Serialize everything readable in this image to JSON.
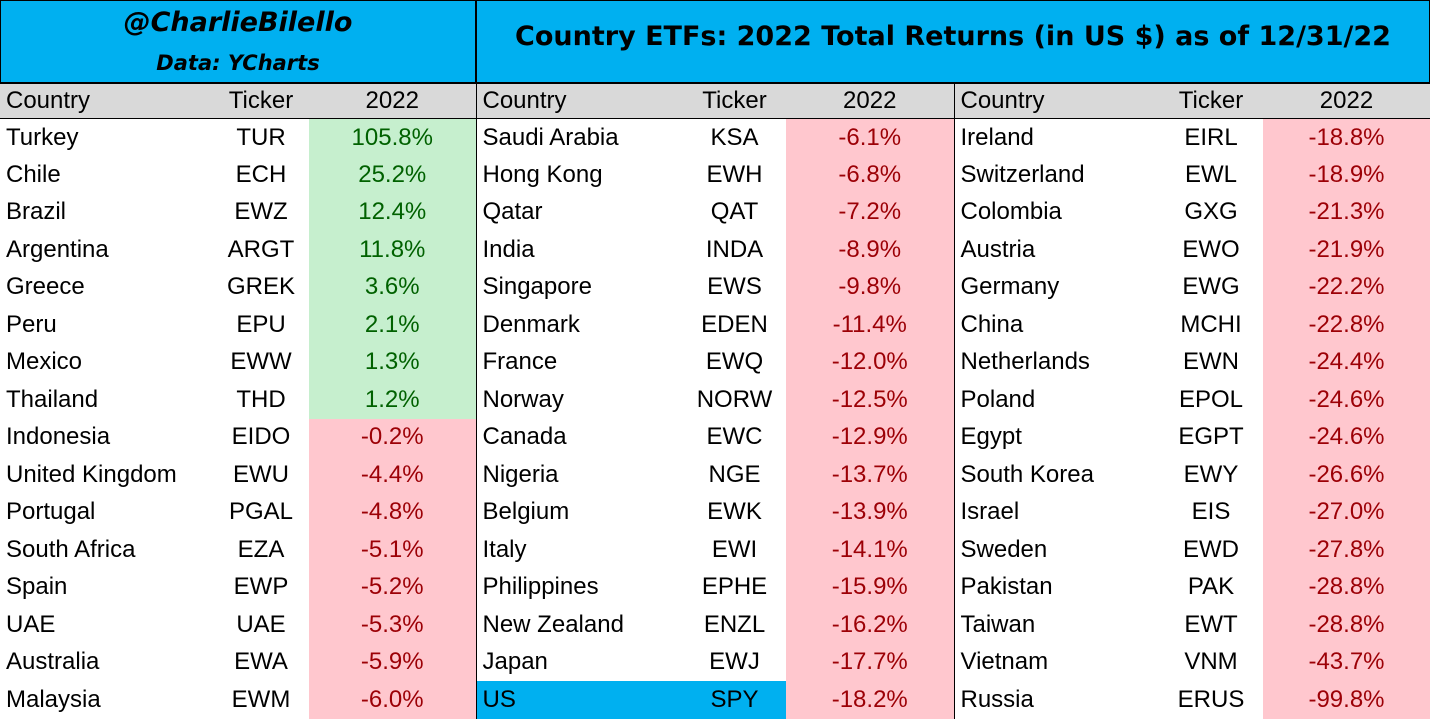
{
  "header": {
    "handle": "@CharlieBilello",
    "source": "Data: YCharts",
    "title": "Country ETFs: 2022 Total Returns (in US $) as of 12/31/22",
    "bg_color": "#00B0F0"
  },
  "columns": {
    "country": "Country",
    "ticker": "Ticker",
    "year": "2022"
  },
  "colors": {
    "positive_bg": "#C6EFCE",
    "positive_text": "#006100",
    "negative_bg": "#FFC7CE",
    "negative_text": "#9C0006",
    "header_bg": "#D9D9D9",
    "highlight_bg": "#00B0F0"
  },
  "chart_data": {
    "type": "table",
    "title": "Country ETFs: 2022 Total Returns (in US $) as of 12/31/22",
    "columns": [
      "Country",
      "Ticker",
      "2022"
    ],
    "groups": [
      [
        {
          "country": "Turkey",
          "ticker": "TUR",
          "ret": "105.8%",
          "value": 105.8
        },
        {
          "country": "Chile",
          "ticker": "ECH",
          "ret": "25.2%",
          "value": 25.2
        },
        {
          "country": "Brazil",
          "ticker": "EWZ",
          "ret": "12.4%",
          "value": 12.4
        },
        {
          "country": "Argentina",
          "ticker": "ARGT",
          "ret": "11.8%",
          "value": 11.8
        },
        {
          "country": "Greece",
          "ticker": "GREK",
          "ret": "3.6%",
          "value": 3.6
        },
        {
          "country": "Peru",
          "ticker": "EPU",
          "ret": "2.1%",
          "value": 2.1
        },
        {
          "country": "Mexico",
          "ticker": "EWW",
          "ret": "1.3%",
          "value": 1.3
        },
        {
          "country": "Thailand",
          "ticker": "THD",
          "ret": "1.2%",
          "value": 1.2
        },
        {
          "country": "Indonesia",
          "ticker": "EIDO",
          "ret": "-0.2%",
          "value": -0.2
        },
        {
          "country": "United Kingdom",
          "ticker": "EWU",
          "ret": "-4.4%",
          "value": -4.4
        },
        {
          "country": "Portugal",
          "ticker": "PGAL",
          "ret": "-4.8%",
          "value": -4.8
        },
        {
          "country": "South Africa",
          "ticker": "EZA",
          "ret": "-5.1%",
          "value": -5.1
        },
        {
          "country": "Spain",
          "ticker": "EWP",
          "ret": "-5.2%",
          "value": -5.2
        },
        {
          "country": "UAE",
          "ticker": "UAE",
          "ret": "-5.3%",
          "value": -5.3
        },
        {
          "country": "Australia",
          "ticker": "EWA",
          "ret": "-5.9%",
          "value": -5.9
        },
        {
          "country": "Malaysia",
          "ticker": "EWM",
          "ret": "-6.0%",
          "value": -6.0
        }
      ],
      [
        {
          "country": "Saudi Arabia",
          "ticker": "KSA",
          "ret": "-6.1%",
          "value": -6.1
        },
        {
          "country": "Hong Kong",
          "ticker": "EWH",
          "ret": "-6.8%",
          "value": -6.8
        },
        {
          "country": "Qatar",
          "ticker": "QAT",
          "ret": "-7.2%",
          "value": -7.2
        },
        {
          "country": "India",
          "ticker": "INDA",
          "ret": "-8.9%",
          "value": -8.9
        },
        {
          "country": "Singapore",
          "ticker": "EWS",
          "ret": "-9.8%",
          "value": -9.8
        },
        {
          "country": "Denmark",
          "ticker": "EDEN",
          "ret": "-11.4%",
          "value": -11.4
        },
        {
          "country": "France",
          "ticker": "EWQ",
          "ret": "-12.0%",
          "value": -12.0
        },
        {
          "country": "Norway",
          "ticker": "NORW",
          "ret": "-12.5%",
          "value": -12.5
        },
        {
          "country": "Canada",
          "ticker": "EWC",
          "ret": "-12.9%",
          "value": -12.9
        },
        {
          "country": "Nigeria",
          "ticker": "NGE",
          "ret": "-13.7%",
          "value": -13.7
        },
        {
          "country": "Belgium",
          "ticker": "EWK",
          "ret": "-13.9%",
          "value": -13.9
        },
        {
          "country": "Italy",
          "ticker": "EWI",
          "ret": "-14.1%",
          "value": -14.1
        },
        {
          "country": "Philippines",
          "ticker": "EPHE",
          "ret": "-15.9%",
          "value": -15.9
        },
        {
          "country": "New Zealand",
          "ticker": "ENZL",
          "ret": "-16.2%",
          "value": -16.2
        },
        {
          "country": "Japan",
          "ticker": "EWJ",
          "ret": "-17.7%",
          "value": -17.7
        },
        {
          "country": "US",
          "ticker": "SPY",
          "ret": "-18.2%",
          "value": -18.2,
          "highlight": true
        }
      ],
      [
        {
          "country": "Ireland",
          "ticker": "EIRL",
          "ret": "-18.8%",
          "value": -18.8
        },
        {
          "country": "Switzerland",
          "ticker": "EWL",
          "ret": "-18.9%",
          "value": -18.9
        },
        {
          "country": "Colombia",
          "ticker": "GXG",
          "ret": "-21.3%",
          "value": -21.3
        },
        {
          "country": "Austria",
          "ticker": "EWO",
          "ret": "-21.9%",
          "value": -21.9
        },
        {
          "country": "Germany",
          "ticker": "EWG",
          "ret": "-22.2%",
          "value": -22.2
        },
        {
          "country": "China",
          "ticker": "MCHI",
          "ret": "-22.8%",
          "value": -22.8
        },
        {
          "country": "Netherlands",
          "ticker": "EWN",
          "ret": "-24.4%",
          "value": -24.4
        },
        {
          "country": "Poland",
          "ticker": "EPOL",
          "ret": "-24.6%",
          "value": -24.6
        },
        {
          "country": "Egypt",
          "ticker": "EGPT",
          "ret": "-24.6%",
          "value": -24.6
        },
        {
          "country": "South Korea",
          "ticker": "EWY",
          "ret": "-26.6%",
          "value": -26.6
        },
        {
          "country": "Israel",
          "ticker": "EIS",
          "ret": "-27.0%",
          "value": -27.0
        },
        {
          "country": "Sweden",
          "ticker": "EWD",
          "ret": "-27.8%",
          "value": -27.8
        },
        {
          "country": "Pakistan",
          "ticker": "PAK",
          "ret": "-28.8%",
          "value": -28.8
        },
        {
          "country": "Taiwan",
          "ticker": "EWT",
          "ret": "-28.8%",
          "value": -28.8
        },
        {
          "country": "Vietnam",
          "ticker": "VNM",
          "ret": "-43.7%",
          "value": -43.7
        },
        {
          "country": "Russia",
          "ticker": "ERUS",
          "ret": "-99.8%",
          "value": -99.8
        }
      ]
    ]
  }
}
